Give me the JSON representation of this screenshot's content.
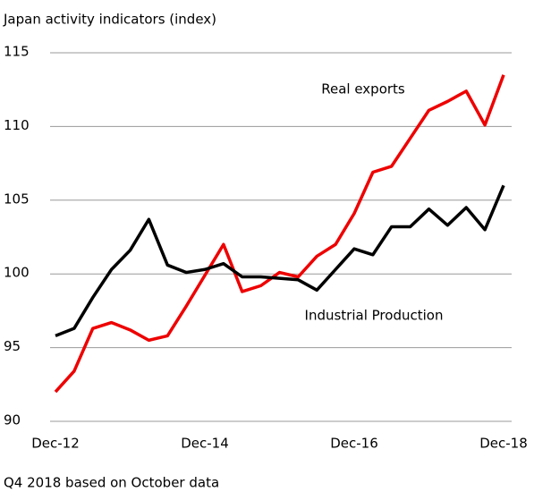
{
  "chart_data": {
    "type": "line",
    "title": "Japan activity indicators (index)",
    "footnote": "Q4 2018 based on October data",
    "categories": [
      "Dec-12",
      null,
      null,
      null,
      null,
      null,
      null,
      null,
      "Dec-14",
      null,
      null,
      null,
      null,
      null,
      null,
      null,
      "Dec-16",
      null,
      null,
      null,
      null,
      null,
      null,
      null,
      "Dec-18"
    ],
    "series": [
      {
        "name": "Real exports",
        "color": "#ee0000",
        "values": [
          92.0,
          93.4,
          96.3,
          96.7,
          96.2,
          95.5,
          95.8,
          97.8,
          99.9,
          102.0,
          98.8,
          99.2,
          100.1,
          99.8,
          101.2,
          102.0,
          104.1,
          106.9,
          107.3,
          109.2,
          111.1,
          111.7,
          112.4,
          110.1,
          113.5
        ]
      },
      {
        "name": "Industrial Production",
        "color": "#000000",
        "values": [
          95.8,
          96.3,
          98.4,
          100.3,
          101.6,
          103.7,
          100.6,
          100.1,
          100.3,
          100.7,
          99.8,
          99.8,
          99.7,
          99.6,
          98.9,
          100.3,
          101.7,
          101.3,
          103.2,
          103.2,
          104.4,
          103.3,
          104.5,
          103.0,
          106.0
        ]
      }
    ],
    "ylim": [
      90,
      115
    ],
    "yticks": [
      90,
      95,
      100,
      105,
      110,
      115
    ],
    "grid": true
  }
}
